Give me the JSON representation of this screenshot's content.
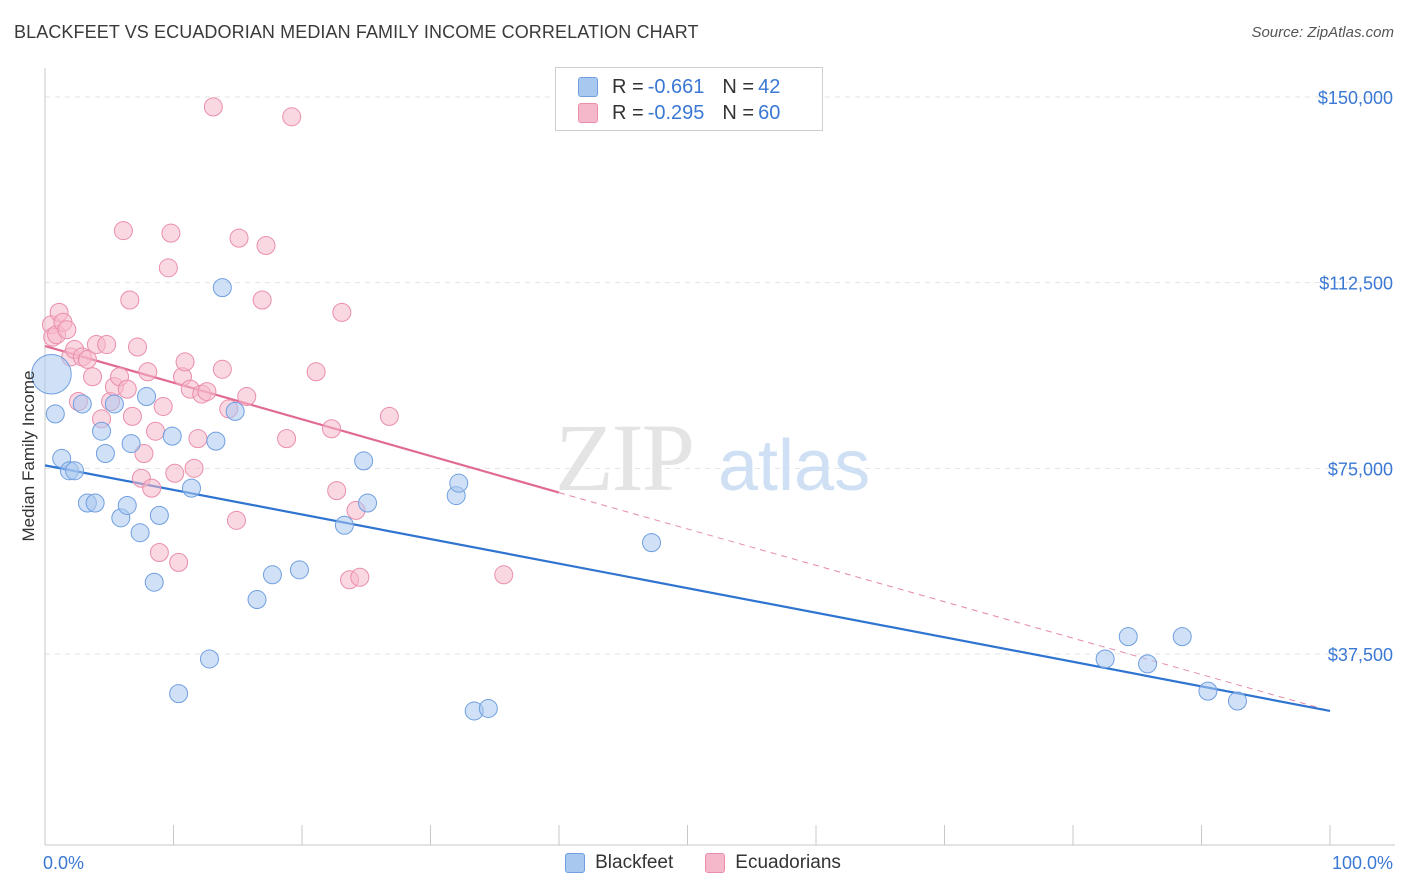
{
  "title": "BLACKFEET VS ECUADORIAN MEDIAN FAMILY INCOME CORRELATION CHART",
  "source": "Source: ZipAtlas.com",
  "watermark": {
    "zip": "ZIP",
    "atlas": "atlas"
  },
  "colors": {
    "blackfeet_fill": "#a9c8f0",
    "blackfeet_stroke": "#6f9fe0",
    "blackfeet_line": "#2f74d0",
    "ecuadorians_fill": "#f5b8cb",
    "ecuadorians_stroke": "#ea8eac",
    "ecuadorians_line": "#e06a93",
    "axis_label": "#3a78d4"
  },
  "legend": {
    "r_label": "R =",
    "n_label": "N =",
    "rows": [
      {
        "series": "Blackfeet",
        "r": "-0.661",
        "n": "42"
      },
      {
        "series": "Ecuadorians",
        "r": "-0.295",
        "n": "60"
      }
    ]
  },
  "chart_data": {
    "type": "scatter",
    "title": "BLACKFEET VS ECUADORIAN MEDIAN FAMILY INCOME CORRELATION CHART",
    "xlabel": "",
    "ylabel": "Median Family Income",
    "xlim": [
      0,
      100
    ],
    "ylim": [
      0,
      157500
    ],
    "x_tick_labels": [
      "0.0%",
      "100.0%"
    ],
    "y_ticks": [
      37500,
      75000,
      112500,
      150000
    ],
    "y_tick_labels": [
      "$37,500",
      "$75,000",
      "$112,500",
      "$150,000"
    ],
    "grid": true,
    "legend_position": "top-center",
    "series": [
      {
        "name": "Blackfeet",
        "trend": {
          "x": [
            0,
            100
          ],
          "y": [
            75600,
            26000
          ]
        },
        "points": [
          [
            0.5,
            94000
          ],
          [
            0.8,
            86000
          ],
          [
            1.3,
            77000
          ],
          [
            1.9,
            74500
          ],
          [
            2.3,
            74500
          ],
          [
            2.9,
            88000
          ],
          [
            3.3,
            68000
          ],
          [
            3.9,
            68000
          ],
          [
            4.4,
            82500
          ],
          [
            4.7,
            78000
          ],
          [
            5.4,
            88000
          ],
          [
            5.9,
            65000
          ],
          [
            6.4,
            67500
          ],
          [
            6.7,
            80000
          ],
          [
            7.4,
            62000
          ],
          [
            7.9,
            89500
          ],
          [
            8.5,
            52000
          ],
          [
            8.9,
            65500
          ],
          [
            9.9,
            81500
          ],
          [
            10.4,
            29500
          ],
          [
            11.4,
            71000
          ],
          [
            12.8,
            36500
          ],
          [
            13.3,
            80500
          ],
          [
            13.8,
            111500
          ],
          [
            14.8,
            86500
          ],
          [
            16.5,
            48500
          ],
          [
            17.7,
            53500
          ],
          [
            19.8,
            54500
          ],
          [
            23.3,
            63500
          ],
          [
            24.8,
            76500
          ],
          [
            25.1,
            68000
          ],
          [
            32.0,
            69500
          ],
          [
            32.2,
            72000
          ],
          [
            33.4,
            26000
          ],
          [
            34.5,
            26500
          ],
          [
            47.2,
            60000
          ],
          [
            82.5,
            36500
          ],
          [
            84.3,
            41000
          ],
          [
            85.8,
            35500
          ],
          [
            88.5,
            41000
          ],
          [
            90.5,
            30000
          ],
          [
            92.8,
            28000
          ]
        ],
        "point_sizes": [
          2.2,
          1,
          1,
          1,
          1,
          1,
          1,
          1,
          1,
          1,
          1,
          1,
          1,
          1,
          1,
          1,
          1,
          1,
          1,
          1,
          1,
          1,
          1,
          1,
          1,
          1,
          1,
          1,
          1,
          1,
          1,
          1,
          1,
          1,
          1,
          1,
          1,
          1,
          1,
          1,
          1,
          1
        ]
      },
      {
        "name": "Ecuadorians",
        "trend": {
          "x": [
            0,
            40
          ],
          "y": [
            99700,
            70100
          ]
        },
        "trend_extension": {
          "x": [
            40,
            100
          ],
          "y": [
            70100,
            26000
          ]
        },
        "points": [
          [
            0.5,
            104000
          ],
          [
            0.6,
            101500
          ],
          [
            0.9,
            102000
          ],
          [
            1.1,
            106500
          ],
          [
            1.4,
            104500
          ],
          [
            1.7,
            103000
          ],
          [
            2.0,
            97500
          ],
          [
            2.3,
            99000
          ],
          [
            2.6,
            88500
          ],
          [
            2.9,
            97500
          ],
          [
            3.3,
            97000
          ],
          [
            3.7,
            93500
          ],
          [
            4.0,
            100000
          ],
          [
            4.4,
            85000
          ],
          [
            4.8,
            100000
          ],
          [
            5.1,
            88500
          ],
          [
            5.4,
            91500
          ],
          [
            5.8,
            93500
          ],
          [
            6.1,
            123000
          ],
          [
            6.4,
            91000
          ],
          [
            6.6,
            109000
          ],
          [
            6.8,
            85500
          ],
          [
            7.2,
            99500
          ],
          [
            7.5,
            73000
          ],
          [
            7.7,
            78000
          ],
          [
            8.0,
            94500
          ],
          [
            8.3,
            71000
          ],
          [
            8.6,
            82500
          ],
          [
            8.9,
            58000
          ],
          [
            9.2,
            87500
          ],
          [
            9.6,
            115500
          ],
          [
            9.8,
            122500
          ],
          [
            10.1,
            74000
          ],
          [
            10.4,
            56000
          ],
          [
            10.7,
            93500
          ],
          [
            10.9,
            96500
          ],
          [
            11.3,
            91000
          ],
          [
            11.6,
            75000
          ],
          [
            11.9,
            81000
          ],
          [
            12.2,
            90000
          ],
          [
            12.6,
            90500
          ],
          [
            13.1,
            148000
          ],
          [
            13.8,
            95000
          ],
          [
            14.3,
            87000
          ],
          [
            14.9,
            64500
          ],
          [
            15.1,
            121500
          ],
          [
            15.7,
            89500
          ],
          [
            16.9,
            109000
          ],
          [
            17.2,
            120000
          ],
          [
            18.8,
            81000
          ],
          [
            19.2,
            146000
          ],
          [
            21.1,
            94500
          ],
          [
            22.3,
            83000
          ],
          [
            22.7,
            70500
          ],
          [
            23.1,
            106500
          ],
          [
            23.7,
            52500
          ],
          [
            24.2,
            66500
          ],
          [
            24.5,
            53000
          ],
          [
            26.8,
            85500
          ],
          [
            35.7,
            53500
          ]
        ]
      }
    ]
  }
}
